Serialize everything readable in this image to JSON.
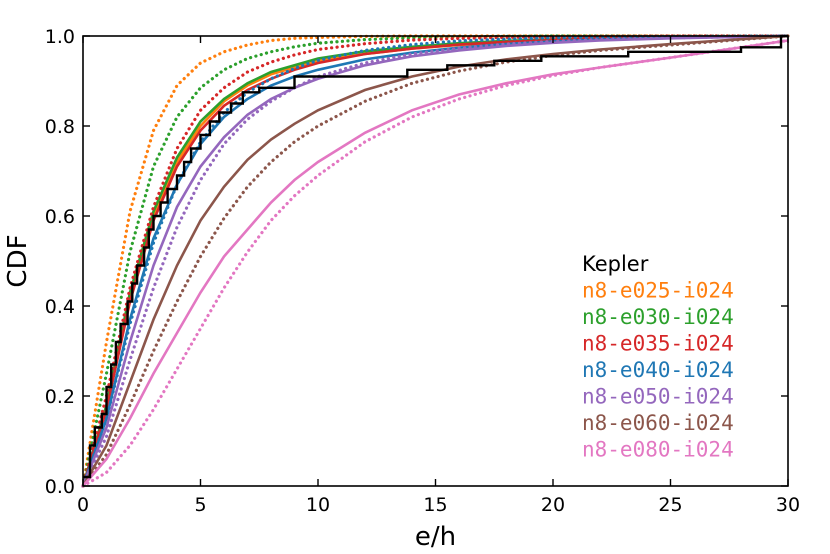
{
  "chart_data": {
    "type": "line",
    "title": "",
    "xlabel": "e/h",
    "ylabel": "CDF",
    "xlim": [
      0,
      30
    ],
    "ylim": [
      0,
      1.0
    ],
    "xticks": [
      0,
      5,
      10,
      15,
      20,
      25,
      30
    ],
    "yticks": [
      0.0,
      0.2,
      0.4,
      0.6,
      0.8,
      1.0
    ],
    "xtick_labels": [
      "0",
      "5",
      "10",
      "15",
      "20",
      "25",
      "30"
    ],
    "ytick_labels": [
      "0.0",
      "0.2",
      "0.4",
      "0.6",
      "0.8",
      "1.0"
    ],
    "legend_title": "Kepler",
    "legend_position": "lower-right",
    "observed": {
      "name": "Kepler",
      "color": "#000000",
      "style": "step",
      "x": [
        0.0,
        0.3,
        0.5,
        0.8,
        1.0,
        1.2,
        1.4,
        1.6,
        1.9,
        2.1,
        2.3,
        2.6,
        2.8,
        3.0,
        3.3,
        3.6,
        4.0,
        4.3,
        4.6,
        5.0,
        5.4,
        5.8,
        6.3,
        6.8,
        7.5,
        9.0,
        10.5,
        13.8,
        15.5,
        17.5,
        19.5,
        23.2,
        28.0,
        29.7,
        30.0
      ],
      "y": [
        0.02,
        0.09,
        0.13,
        0.16,
        0.22,
        0.27,
        0.32,
        0.36,
        0.41,
        0.45,
        0.49,
        0.53,
        0.57,
        0.6,
        0.63,
        0.66,
        0.69,
        0.72,
        0.75,
        0.78,
        0.81,
        0.83,
        0.85,
        0.875,
        0.885,
        0.91,
        0.91,
        0.925,
        0.935,
        0.945,
        0.955,
        0.965,
        0.975,
        1.0,
        1.0
      ]
    },
    "series": [
      {
        "name": "n8-e025-i024",
        "color": "#ff7f0e",
        "solid": {
          "x": [
            0,
            1,
            2,
            3,
            4,
            5,
            6,
            7,
            8,
            9,
            10,
            12,
            14,
            16,
            18,
            20,
            22,
            25,
            30
          ],
          "y": [
            0,
            0.17,
            0.42,
            0.6,
            0.72,
            0.8,
            0.855,
            0.89,
            0.915,
            0.93,
            0.945,
            0.96,
            0.972,
            0.98,
            0.986,
            0.99,
            0.994,
            0.997,
            1.0
          ]
        },
        "dotted": {
          "x": [
            0,
            1,
            2,
            3,
            4,
            5,
            6,
            7,
            8,
            9,
            10,
            12,
            14,
            16,
            18,
            20,
            22,
            25,
            30
          ],
          "y": [
            0,
            0.32,
            0.61,
            0.79,
            0.89,
            0.94,
            0.965,
            0.98,
            0.99,
            0.995,
            0.997,
            0.999,
            1.0,
            1.0,
            1.0,
            1.0,
            1.0,
            1.0,
            1.0
          ]
        }
      },
      {
        "name": "n8-e030-i024",
        "color": "#2ca02c",
        "solid": {
          "x": [
            0,
            1,
            2,
            3,
            4,
            5,
            6,
            7,
            8,
            9,
            10,
            12,
            14,
            16,
            18,
            20,
            22,
            25,
            30
          ],
          "y": [
            0,
            0.18,
            0.43,
            0.61,
            0.73,
            0.81,
            0.86,
            0.895,
            0.92,
            0.935,
            0.95,
            0.966,
            0.976,
            0.984,
            0.989,
            0.992,
            0.995,
            0.998,
            1.0
          ]
        },
        "dotted": {
          "x": [
            0,
            1,
            2,
            3,
            4,
            5,
            6,
            7,
            8,
            9,
            10,
            12,
            14,
            16,
            18,
            20,
            22,
            25,
            30
          ],
          "y": [
            0,
            0.25,
            0.52,
            0.71,
            0.82,
            0.885,
            0.925,
            0.95,
            0.965,
            0.976,
            0.984,
            0.992,
            0.996,
            0.998,
            0.999,
            1.0,
            1.0,
            1.0,
            1.0
          ]
        }
      },
      {
        "name": "n8-e035-i024",
        "color": "#d62728",
        "solid": {
          "x": [
            0,
            1,
            2,
            3,
            4,
            5,
            6,
            7,
            8,
            9,
            10,
            12,
            14,
            16,
            18,
            20,
            22,
            25,
            30
          ],
          "y": [
            0,
            0.17,
            0.41,
            0.59,
            0.71,
            0.79,
            0.845,
            0.88,
            0.905,
            0.925,
            0.94,
            0.96,
            0.972,
            0.981,
            0.987,
            0.991,
            0.994,
            0.997,
            1.0
          ]
        },
        "dotted": {
          "x": [
            0,
            1,
            2,
            3,
            4,
            5,
            6,
            7,
            8,
            9,
            10,
            12,
            14,
            16,
            18,
            20,
            22,
            25,
            30
          ],
          "y": [
            0,
            0.2,
            0.44,
            0.62,
            0.75,
            0.835,
            0.885,
            0.92,
            0.942,
            0.958,
            0.97,
            0.983,
            0.991,
            0.995,
            0.997,
            0.998,
            0.999,
            1.0,
            1.0
          ]
        }
      },
      {
        "name": "n8-e040-i024",
        "color": "#1f77b4",
        "solid": {
          "x": [
            0,
            1,
            2,
            3,
            4,
            5,
            6,
            7,
            8,
            9,
            10,
            12,
            14,
            16,
            18,
            20,
            22,
            25,
            30
          ],
          "y": [
            0,
            0.15,
            0.37,
            0.55,
            0.67,
            0.76,
            0.82,
            0.86,
            0.89,
            0.91,
            0.925,
            0.948,
            0.963,
            0.974,
            0.982,
            0.988,
            0.992,
            0.996,
            1.0
          ]
        },
        "dotted": {
          "x": [
            0,
            1,
            2,
            3,
            4,
            5,
            6,
            7,
            8,
            9,
            10,
            12,
            14,
            16,
            18,
            20,
            22,
            25,
            30
          ],
          "y": [
            0,
            0.15,
            0.36,
            0.54,
            0.67,
            0.765,
            0.83,
            0.875,
            0.905,
            0.928,
            0.946,
            0.968,
            0.981,
            0.989,
            0.993,
            0.996,
            0.998,
            0.999,
            1.0
          ]
        }
      },
      {
        "name": "n8-e050-i024",
        "color": "#9467bd",
        "solid": {
          "x": [
            0,
            1,
            2,
            3,
            4,
            5,
            6,
            7,
            8,
            9,
            10,
            12,
            14,
            16,
            18,
            20,
            22,
            25,
            30
          ],
          "y": [
            0,
            0.13,
            0.32,
            0.49,
            0.62,
            0.71,
            0.775,
            0.825,
            0.86,
            0.885,
            0.905,
            0.935,
            0.955,
            0.968,
            0.978,
            0.985,
            0.99,
            0.995,
            1.0
          ]
        },
        "dotted": {
          "x": [
            0,
            1,
            2,
            3,
            4,
            5,
            6,
            7,
            8,
            9,
            10,
            12,
            14,
            16,
            18,
            20,
            22,
            25,
            30
          ],
          "y": [
            0,
            0.11,
            0.28,
            0.44,
            0.575,
            0.68,
            0.76,
            0.815,
            0.855,
            0.885,
            0.91,
            0.94,
            0.96,
            0.973,
            0.982,
            0.988,
            0.992,
            0.996,
            1.0
          ]
        }
      },
      {
        "name": "n8-e060-i024",
        "color": "#8c564b",
        "solid": {
          "x": [
            0,
            1,
            2,
            3,
            4,
            5,
            6,
            7,
            8,
            9,
            10,
            12,
            14,
            16,
            18,
            20,
            22,
            25,
            30
          ],
          "y": [
            0,
            0.09,
            0.23,
            0.37,
            0.49,
            0.59,
            0.665,
            0.725,
            0.77,
            0.805,
            0.835,
            0.88,
            0.91,
            0.932,
            0.948,
            0.96,
            0.97,
            0.982,
            1.0
          ]
        },
        "dotted": {
          "x": [
            0,
            1,
            2,
            3,
            4,
            5,
            6,
            7,
            8,
            9,
            10,
            12,
            14,
            16,
            18,
            20,
            22,
            25,
            30
          ],
          "y": [
            0,
            0.07,
            0.18,
            0.3,
            0.41,
            0.51,
            0.595,
            0.665,
            0.72,
            0.765,
            0.8,
            0.855,
            0.895,
            0.922,
            0.942,
            0.957,
            0.968,
            0.98,
            1.0
          ]
        }
      },
      {
        "name": "n8-e080-i024",
        "color": "#e377c2",
        "solid": {
          "x": [
            0,
            1,
            2,
            3,
            4,
            5,
            6,
            7,
            8,
            9,
            10,
            12,
            14,
            16,
            18,
            20,
            22,
            25,
            30
          ],
          "y": [
            0,
            0.06,
            0.15,
            0.25,
            0.34,
            0.43,
            0.51,
            0.57,
            0.63,
            0.68,
            0.72,
            0.785,
            0.835,
            0.87,
            0.895,
            0.915,
            0.93,
            0.952,
            0.99
          ]
        },
        "dotted": {
          "x": [
            0,
            1,
            2,
            3,
            4,
            5,
            6,
            7,
            8,
            9,
            10,
            12,
            14,
            16,
            18,
            20,
            22,
            25,
            30
          ],
          "y": [
            0,
            0.03,
            0.09,
            0.17,
            0.26,
            0.35,
            0.44,
            0.52,
            0.59,
            0.645,
            0.69,
            0.765,
            0.82,
            0.86,
            0.89,
            0.912,
            0.93,
            0.952,
            0.99
          ]
        }
      }
    ]
  }
}
